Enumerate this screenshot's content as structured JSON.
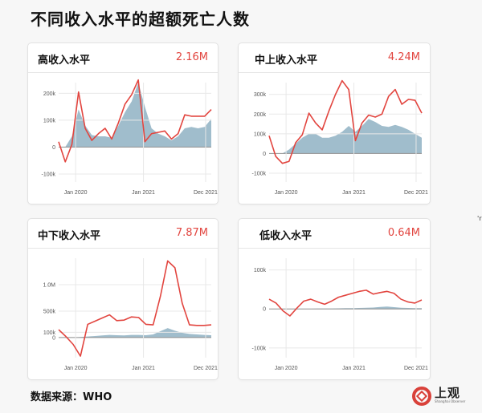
{
  "page": {
    "title": "不同收入水平的超额死亡人数",
    "source": "数据来源：WHO",
    "logo_text": "上观",
    "logo_sub": "Shanghai Observer",
    "edge_glyph": "'r"
  },
  "colors": {
    "line": "#e2453f",
    "area": "#8fb2c3",
    "zero": "#8e8e8e",
    "grid": "#e8e8e8"
  },
  "chart_data": [
    {
      "type": "area",
      "title": "高收入水平",
      "total": "2.16M",
      "x_ticks": [
        "Jan 2020",
        "Jan 2021",
        "Dec 2021"
      ],
      "x_tick_index": [
        3,
        15,
        26
      ],
      "y_ticks": [
        {
          "v": 200000,
          "label": "200k"
        },
        {
          "v": 100000,
          "label": "100k"
        },
        {
          "v": 0,
          "label": "0"
        },
        {
          "v": -100000,
          "label": "-100k"
        }
      ],
      "ylim": [
        -130000,
        240000
      ],
      "series": [
        {
          "kind": "line",
          "values": [
            20000,
            -55000,
            10000,
            205000,
            70000,
            25000,
            50000,
            70000,
            30000,
            90000,
            160000,
            195000,
            250000,
            20000,
            50000,
            55000,
            60000,
            30000,
            50000,
            120000,
            115000,
            115000,
            115000,
            140000
          ]
        },
        {
          "kind": "area",
          "values": [
            0,
            0,
            40000,
            140000,
            80000,
            45000,
            40000,
            40000,
            35000,
            80000,
            130000,
            170000,
            240000,
            150000,
            70000,
            50000,
            40000,
            25000,
            40000,
            70000,
            75000,
            70000,
            75000,
            105000
          ]
        }
      ]
    },
    {
      "type": "area",
      "title": "中上收入水平",
      "total": "4.24M",
      "x_ticks": [
        "Jan 2020",
        "Jan 2021",
        "Dec 2021"
      ],
      "x_tick_index": [
        3,
        15,
        26
      ],
      "y_ticks": [
        {
          "v": 300000,
          "label": "300k"
        },
        {
          "v": 200000,
          "label": "200k"
        },
        {
          "v": 100000,
          "label": "100k"
        },
        {
          "v": 0,
          "label": "0"
        },
        {
          "v": -100000,
          "label": "-100k"
        }
      ],
      "ylim": [
        -145000,
        360000
      ],
      "series": [
        {
          "kind": "line",
          "values": [
            90000,
            -15000,
            -50000,
            -40000,
            55000,
            95000,
            205000,
            155000,
            120000,
            215000,
            300000,
            370000,
            325000,
            65000,
            155000,
            195000,
            185000,
            200000,
            290000,
            325000,
            250000,
            275000,
            270000,
            205000
          ]
        },
        {
          "kind": "area",
          "values": [
            0,
            0,
            0,
            20000,
            50000,
            80000,
            100000,
            100000,
            80000,
            80000,
            90000,
            110000,
            140000,
            110000,
            140000,
            175000,
            160000,
            140000,
            135000,
            145000,
            135000,
            120000,
            100000,
            80000
          ]
        }
      ]
    },
    {
      "type": "area",
      "title": "中下收入水平",
      "total": "7.87M",
      "x_ticks": [
        "Jan 2020",
        "Jan 2021",
        "Dec 2021"
      ],
      "x_tick_index": [
        3,
        15,
        26
      ],
      "y_ticks": [
        {
          "v": 1000000,
          "label": "1.0M"
        },
        {
          "v": 500000,
          "label": "500k"
        },
        {
          "v": 100000,
          "label": "100k"
        },
        {
          "v": 0,
          "label": "0"
        }
      ],
      "ylim": [
        -380000,
        1500000
      ],
      "series": [
        {
          "kind": "line",
          "values": [
            150000,
            20000,
            -130000,
            -350000,
            250000,
            310000,
            370000,
            430000,
            320000,
            330000,
            390000,
            380000,
            250000,
            240000,
            780000,
            1450000,
            1320000,
            650000,
            240000,
            230000,
            230000,
            240000
          ]
        },
        {
          "kind": "area",
          "values": [
            0,
            0,
            0,
            10000,
            20000,
            30000,
            40000,
            50000,
            45000,
            40000,
            50000,
            50000,
            45000,
            60000,
            120000,
            180000,
            130000,
            90000,
            70000,
            60000,
            50000,
            45000
          ]
        }
      ]
    },
    {
      "type": "area",
      "title": "低收入水平",
      "total": "0.64M",
      "x_ticks": [
        "Jan 2020",
        "Jan 2021",
        "Dec 2021"
      ],
      "x_tick_index": [
        3,
        15,
        26
      ],
      "y_ticks": [
        {
          "v": 100000,
          "label": "100k"
        },
        {
          "v": 0,
          "label": "0"
        },
        {
          "v": -100000,
          "label": "-100k"
        }
      ],
      "ylim": [
        -125000,
        130000
      ],
      "series": [
        {
          "kind": "line",
          "values": [
            25000,
            15000,
            -5000,
            -18000,
            2000,
            20000,
            25000,
            18000,
            12000,
            20000,
            30000,
            35000,
            40000,
            45000,
            48000,
            38000,
            42000,
            45000,
            40000,
            25000,
            18000,
            15000,
            23000
          ]
        },
        {
          "kind": "area",
          "values": [
            0,
            0,
            0,
            0,
            0,
            0,
            500,
            1000,
            1000,
            1000,
            1500,
            2000,
            2000,
            2500,
            3000,
            3500,
            5000,
            6000,
            4500,
            3000,
            2500,
            2000,
            2000
          ]
        }
      ]
    }
  ]
}
